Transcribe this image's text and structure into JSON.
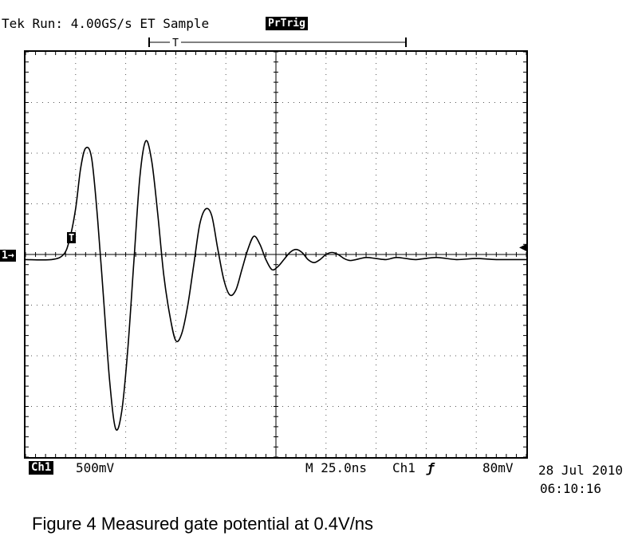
{
  "header": {
    "status": "Tek Run: 4.00GS/s ET Sample",
    "trigger_mode_badge": "PrTrig",
    "trigger_bracket_mark": "T"
  },
  "footer": {
    "channel_tag": "Ch1",
    "volts_per_div": "500mV",
    "timebase": "M 25.0ns",
    "trigger_source": "Ch1",
    "trigger_edge_icon": "rising-edge-icon",
    "trigger_edge_glyph": "ƒ",
    "trigger_level": "80mV",
    "date": "28 Jul 2010",
    "time": "06:10:16"
  },
  "markers": {
    "channel_ground": "1→",
    "trigger_point": "T",
    "trigger_level_arrow": "◀"
  },
  "caption": "Figure 4 Measured gate potential at 0.4V/ns",
  "colors": {
    "trace": "#000000",
    "grid": "#555555",
    "background": "#ffffff"
  },
  "chart_data": {
    "type": "line",
    "title": "",
    "xlabel": "",
    "ylabel": "",
    "x_unit": "ns",
    "y_unit": "V",
    "xlim": [
      -125,
      125
    ],
    "ylim": [
      -2.0,
      2.0
    ],
    "divisions": {
      "x": 10,
      "y": 8
    },
    "grid": true,
    "series": [
      {
        "x": [
          -125,
          -112,
          -106,
          -103,
          -100,
          -97.5,
          -95,
          -92,
          -89,
          -86,
          -83,
          -80,
          -77,
          -74,
          -71,
          -68,
          -65,
          -62,
          -59,
          -56,
          -53,
          -50,
          -47,
          -44,
          -41,
          -38,
          -35,
          -32,
          -29,
          -26,
          -23,
          -20,
          -17,
          -14,
          -11,
          -8,
          -5,
          -2,
          1,
          4,
          7,
          10,
          13,
          16,
          19,
          22,
          25,
          28,
          31,
          34,
          37,
          40,
          45,
          50,
          55,
          60,
          65,
          70,
          80,
          90,
          100,
          110,
          125
        ],
        "y": [
          -0.05,
          -0.05,
          0.0,
          0.15,
          0.45,
          0.85,
          1.05,
          0.95,
          0.35,
          -0.45,
          -1.25,
          -1.72,
          -1.55,
          -0.95,
          -0.1,
          0.75,
          1.12,
          0.92,
          0.4,
          -0.2,
          -0.6,
          -0.85,
          -0.78,
          -0.5,
          -0.1,
          0.3,
          0.45,
          0.38,
          0.05,
          -0.25,
          -0.4,
          -0.35,
          -0.15,
          0.05,
          0.18,
          0.1,
          -0.05,
          -0.15,
          -0.12,
          -0.05,
          0.02,
          0.05,
          0.02,
          -0.05,
          -0.08,
          -0.05,
          0.0,
          0.02,
          0.0,
          -0.04,
          -0.06,
          -0.05,
          -0.03,
          -0.04,
          -0.05,
          -0.03,
          -0.04,
          -0.05,
          -0.03,
          -0.05,
          -0.04,
          -0.05,
          -0.05
        ]
      }
    ]
  }
}
